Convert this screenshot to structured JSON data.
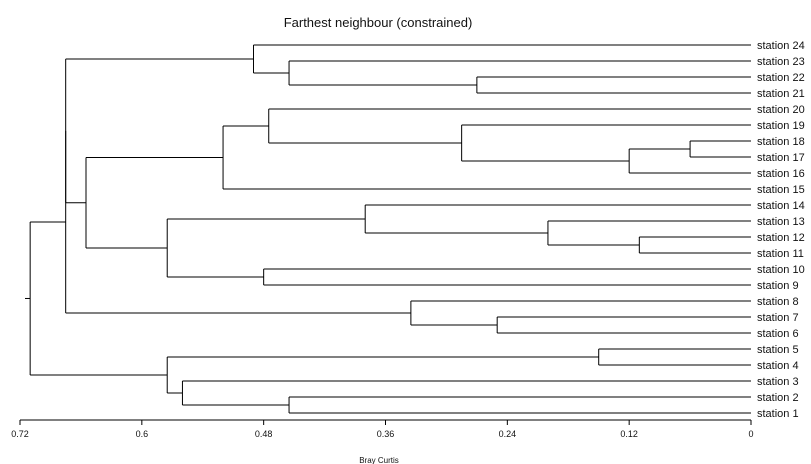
{
  "chart": {
    "title": "Farthest neighbour (constrained)",
    "x_axis_label": "Bray Curtis"
  },
  "chart_data": {
    "type": "dendrogram",
    "title": "Farthest neighbour (constrained)",
    "xlabel": "Bray Curtis",
    "xlim": [
      0.72,
      0
    ],
    "x_ticks": [
      "0.72",
      "0.6",
      "0.48",
      "0.36",
      "0.24",
      "0.12",
      "0"
    ],
    "tick_values": [
      0.72,
      0.6,
      0.48,
      0.36,
      0.24,
      0.12,
      0
    ],
    "leaves": [
      "station 24",
      "station 23",
      "station 22",
      "station 21",
      "station 20",
      "station 19",
      "station 18",
      "station 17",
      "station 16",
      "station 15",
      "station 14",
      "station 13",
      "station 12",
      "station 11",
      "station 10",
      "station 9",
      "station 8",
      "station 7",
      "station 6",
      "station 5",
      "station 4",
      "station 3",
      "station 2",
      "station 1"
    ],
    "merges": [
      {
        "members": [
          "station 22",
          "station 21"
        ],
        "height": 0.27
      },
      {
        "members": [
          "station 23",
          "[station 22, station 21]"
        ],
        "height": 0.455
      },
      {
        "members": [
          "station 24",
          "[station 23, station 22, station 21]"
        ],
        "height": 0.49
      },
      {
        "members": [
          "station 18",
          "station 17"
        ],
        "height": 0.06
      },
      {
        "members": [
          "[station 18, station 17]",
          "station 16"
        ],
        "height": 0.12
      },
      {
        "members": [
          "station 19",
          "[station 18, station 17, station 16]"
        ],
        "height": 0.285
      },
      {
        "members": [
          "station 20",
          "[station 19 .. station 16]"
        ],
        "height": 0.475
      },
      {
        "members": [
          "[station 20 .. station 16]",
          "station 15"
        ],
        "height": 0.52
      },
      {
        "members": [
          "station 12",
          "station 11"
        ],
        "height": 0.11
      },
      {
        "members": [
          "station 13",
          "[station 12, station 11]"
        ],
        "height": 0.2
      },
      {
        "members": [
          "station 14",
          "[station 13, station 12, station 11]"
        ],
        "height": 0.38
      },
      {
        "members": [
          "station 10",
          "station 9"
        ],
        "height": 0.48
      },
      {
        "members": [
          "[station 14 .. station 11]",
          "[station 10, station 9]"
        ],
        "height": 0.575
      },
      {
        "members": [
          "[station 20 .. station 15]",
          "[station 14 .. station 9]"
        ],
        "height": 0.655
      },
      {
        "members": [
          "station 7",
          "station 6"
        ],
        "height": 0.25
      },
      {
        "members": [
          "station 8",
          "[station 7, station 6]"
        ],
        "height": 0.335
      },
      {
        "members": [
          "[station 24 .. station 21]",
          "[station 20 .. station 9]"
        ],
        "height": 0.675
      },
      {
        "members": [
          "[station 24 .. station 9]",
          "[station 8, station 7, station 6]"
        ],
        "height": 0.675
      },
      {
        "members": [
          "station 5",
          "station 4"
        ],
        "height": 0.15
      },
      {
        "members": [
          "station 2",
          "station 1"
        ],
        "height": 0.455
      },
      {
        "members": [
          "station 3",
          "[station 2, station 1]"
        ],
        "height": 0.56
      },
      {
        "members": [
          "[station 5, station 4]",
          "[station 3, station 2, station 1]"
        ],
        "height": 0.575
      },
      {
        "members": [
          "[station 24 .. station 6]",
          "[station 5 .. station 1]"
        ],
        "height": 0.71
      }
    ]
  }
}
